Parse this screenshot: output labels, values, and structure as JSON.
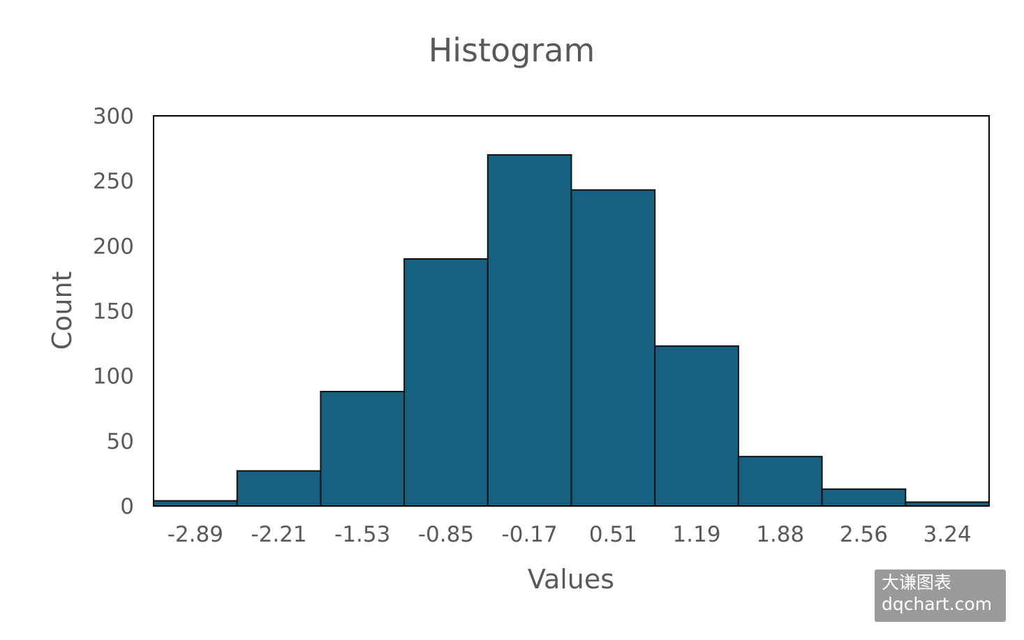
{
  "chart_data": {
    "type": "bar",
    "title": "Histogram",
    "xlabel": "Values",
    "ylabel": "Count",
    "categories": [
      "-2.89",
      "-2.21",
      "-1.53",
      "-0.85",
      "-0.17",
      "0.51",
      "1.19",
      "1.88",
      "2.56",
      "3.24"
    ],
    "values": [
      4,
      27,
      88,
      190,
      270,
      243,
      123,
      38,
      13,
      3
    ],
    "ylim": [
      0,
      300
    ],
    "yticks": [
      "0",
      "50",
      "100",
      "150",
      "200",
      "250",
      "300"
    ],
    "grid": false,
    "legend": "none",
    "bar_color": "#17607f",
    "edge_color": "#111111"
  },
  "watermark": {
    "line1": "大谦图表",
    "line2": "dqchart.com"
  }
}
